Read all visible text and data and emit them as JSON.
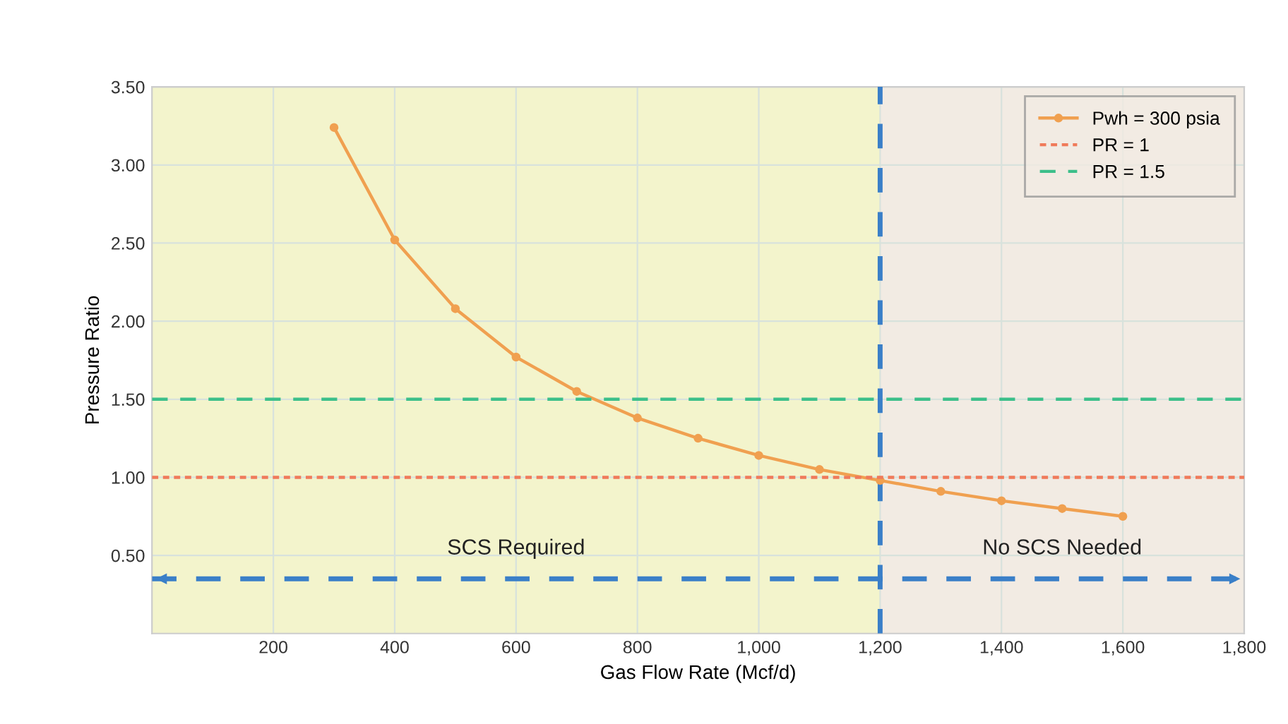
{
  "chart_data": {
    "type": "line",
    "xlabel": "Gas Flow Rate (Mcf/d)",
    "ylabel": "Pressure Ratio",
    "xlim": [
      0,
      1800
    ],
    "ylim": [
      0,
      3.5
    ],
    "xticks": [
      200,
      400,
      600,
      800,
      {
        "value": 1000,
        "label": "1,000"
      },
      {
        "value": 1200,
        "label": "1,200"
      },
      {
        "value": 1400,
        "label": "1,400"
      },
      {
        "value": 1600,
        "label": "1,600"
      },
      {
        "value": 1800,
        "label": "1,800"
      }
    ],
    "yticks": [
      {
        "value": 0.5,
        "label": "0.50"
      },
      {
        "value": 1,
        "label": "1.00"
      },
      {
        "value": 1.5,
        "label": "1.50"
      },
      {
        "value": 2,
        "label": "2.00"
      },
      {
        "value": 2.5,
        "label": "2.50"
      },
      {
        "value": 3,
        "label": "3.00"
      },
      {
        "value": 3.5,
        "label": "3.50"
      }
    ],
    "grid": true,
    "legend": "top right",
    "series": [
      {
        "name": "Pwh = 300 psia",
        "color": "#f0a050",
        "marker": "circle",
        "line_style": "solid",
        "x": [
          300,
          400,
          500,
          600,
          700,
          800,
          900,
          1000,
          1100,
          1200,
          1300,
          1400,
          1500,
          1600
        ],
        "values": [
          3.24,
          2.52,
          2.08,
          1.77,
          1.55,
          1.38,
          1.25,
          1.14,
          1.05,
          0.98,
          0.91,
          0.85,
          0.8,
          0.75
        ]
      },
      {
        "name": "PR = 1",
        "color": "#f07a5a",
        "marker": "none",
        "line_style": "dotted",
        "x": [
          0,
          1800
        ],
        "values": [
          1,
          1
        ]
      },
      {
        "name": "PR = 1.5",
        "color": "#3cbf8a",
        "marker": "none",
        "line_style": "dashed",
        "x": [
          0,
          1800
        ],
        "values": [
          1.5,
          1.5
        ]
      }
    ],
    "ref_lines": [
      {
        "axis": "x",
        "value": 1200,
        "color": "#3a7fc8",
        "line_style": "dashed"
      },
      {
        "axis": "y",
        "value": 0.35,
        "color": "#3a7fc8",
        "line_style": "dashed"
      }
    ],
    "bands": [
      {
        "axis": "x",
        "from": 0,
        "to": 1200,
        "color": "#f3f4cc"
      },
      {
        "axis": "x",
        "from": 1200,
        "to": 1800,
        "color": "#f2ebe3"
      }
    ],
    "annotations": [
      "SCS Required",
      "No SCS Needed"
    ]
  }
}
